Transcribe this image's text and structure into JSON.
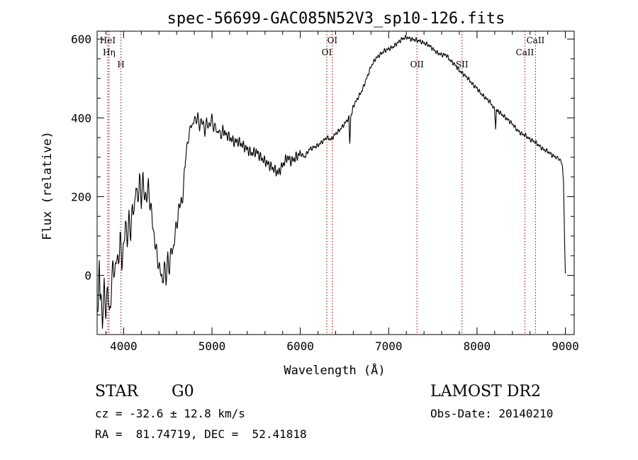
{
  "chart_data": {
    "type": "line",
    "title": "spec-56699-GAC085N52V3_sp10-126.fits",
    "xlabel": "Wavelength (Å)",
    "ylabel": "Flux (relative)",
    "xlim": [
      3700,
      9100
    ],
    "ylim": [
      -150,
      620
    ],
    "xticks": [
      4000,
      5000,
      6000,
      7000,
      8000,
      9000
    ],
    "yticks": [
      0,
      200,
      400,
      600
    ],
    "x_minor_step": 200,
    "y_minor_step": 50,
    "grid": false,
    "line_color": "#000000",
    "line_marker_color": "#990000",
    "series": [
      {
        "x": [
          3710,
          3725,
          3740,
          3760,
          3780,
          3800,
          3820,
          3840,
          3860,
          3880,
          3900,
          3920,
          3940,
          3960,
          3980,
          4000,
          4020,
          4040,
          4060,
          4080,
          4100,
          4120,
          4140,
          4160,
          4180,
          4200,
          4220,
          4240,
          4260,
          4280,
          4300,
          4320,
          4340,
          4360,
          4380,
          4400,
          4420,
          4440,
          4460,
          4480,
          4500,
          4520,
          4540,
          4560,
          4580,
          4600,
          4620,
          4640,
          4660,
          4680,
          4700,
          4720,
          4740,
          4760,
          4780,
          4800,
          4820,
          4840,
          4860,
          4880,
          4900,
          4920,
          4940,
          4960,
          4980,
          5000,
          5020,
          5040,
          5060,
          5080,
          5100,
          5120,
          5150,
          5200,
          5250,
          5300,
          5350,
          5400,
          5450,
          5500,
          5550,
          5600,
          5650,
          5700,
          5750,
          5800,
          5850,
          5900,
          5950,
          6000,
          6050,
          6100,
          6150,
          6200,
          6250,
          6300,
          6350,
          6400,
          6450,
          6500,
          6550,
          6560,
          6570,
          6600,
          6650,
          6700,
          6750,
          6800,
          6850,
          6900,
          6950,
          7000,
          7050,
          7100,
          7150,
          7200,
          7250,
          7300,
          7350,
          7400,
          7450,
          7500,
          7550,
          7600,
          7650,
          7700,
          7750,
          7800,
          7850,
          7900,
          7950,
          8000,
          8050,
          8100,
          8150,
          8200,
          8210,
          8220,
          8250,
          8300,
          8350,
          8400,
          8450,
          8500,
          8550,
          8600,
          8650,
          8700,
          8750,
          8800,
          8850,
          8900,
          8940,
          8960,
          8970,
          8980,
          8990,
          9000
        ],
        "y": [
          -80,
          20,
          -60,
          -130,
          -40,
          -110,
          -20,
          -100,
          -30,
          50,
          0,
          60,
          10,
          90,
          20,
          60,
          140,
          90,
          160,
          110,
          190,
          150,
          230,
          170,
          240,
          180,
          250,
          200,
          210,
          240,
          180,
          160,
          90,
          70,
          40,
          10,
          20,
          -20,
          40,
          0,
          50,
          10,
          70,
          40,
          100,
          120,
          160,
          200,
          190,
          240,
          300,
          330,
          350,
          380,
          370,
          400,
          390,
          410,
          380,
          400,
          390,
          360,
          390,
          370,
          380,
          400,
          370,
          390,
          360,
          380,
          350,
          370,
          360,
          350,
          340,
          340,
          330,
          320,
          310,
          315,
          300,
          290,
          280,
          270,
          260,
          280,
          300,
          290,
          300,
          310,
          300,
          320,
          325,
          330,
          340,
          350,
          345,
          360,
          370,
          385,
          400,
          330,
          400,
          430,
          450,
          470,
          500,
          530,
          550,
          560,
          570,
          575,
          580,
          590,
          600,
          605,
          600,
          598,
          595,
          590,
          585,
          575,
          565,
          560,
          560,
          545,
          535,
          520,
          510,
          500,
          485,
          475,
          460,
          450,
          440,
          420,
          370,
          420,
          415,
          405,
          395,
          385,
          370,
          360,
          355,
          345,
          340,
          330,
          320,
          315,
          305,
          300,
          290,
          285,
          270,
          230,
          100,
          5
        ]
      }
    ],
    "line_marks": [
      {
        "label": "HeI",
        "x": 3820,
        "row": 0
      },
      {
        "label": "Hη",
        "x": 3835,
        "row": 1
      },
      {
        "label": "H",
        "x": 3970,
        "row": 2
      },
      {
        "label": "OI",
        "x": 6300,
        "row": 1
      },
      {
        "label": "OI",
        "x": 6363,
        "row": 0
      },
      {
        "label": "OII",
        "x": 7320,
        "row": 2
      },
      {
        "label": "SII",
        "x": 7830,
        "row": 2
      },
      {
        "label": "CaII",
        "x": 8542,
        "row": 1
      },
      {
        "label": "CaII",
        "x": 8662,
        "row": 0
      }
    ]
  },
  "info": {
    "object_class": "STAR",
    "subclass": "G0",
    "survey": "LAMOST DR2",
    "cz": "cz = -32.6 ± 12.8 km/s",
    "obs_date": "Obs-Date: 20140210",
    "coords": "RA =  81.74719, DEC =  52.41818"
  }
}
